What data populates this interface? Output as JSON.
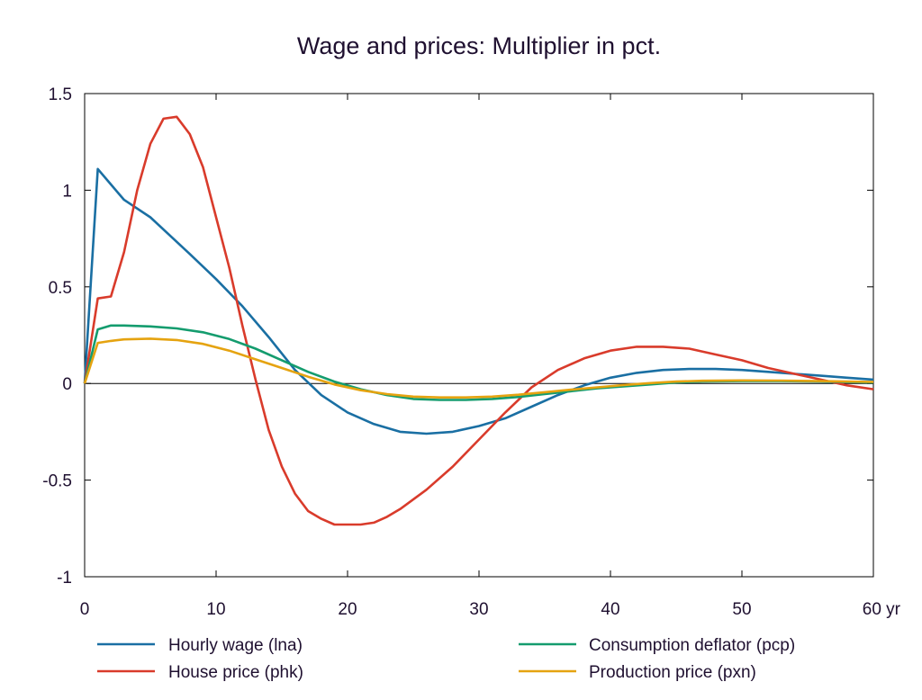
{
  "chart_data": {
    "type": "line",
    "title": "Wage and prices: Multiplier in pct.",
    "x_unit_label": "yr",
    "xlim": [
      0,
      60
    ],
    "ylim": [
      -1,
      1.5
    ],
    "x_ticks": [
      0,
      10,
      20,
      30,
      40,
      50,
      60
    ],
    "x_tick_labels": [
      "0",
      "10",
      "20",
      "30",
      "40",
      "50",
      "60 yr"
    ],
    "y_ticks": [
      1.5,
      1,
      0.5,
      0,
      -0.5,
      -1
    ],
    "y_tick_labels": [
      "1.5",
      "1",
      "0.5",
      "0",
      "-0.5",
      "-1"
    ],
    "zero_line": true,
    "grid": false,
    "legend_position": "bottom",
    "series": [
      {
        "name": "Hourly wage (lna)",
        "color": "#1a6fa3",
        "x": [
          0,
          1,
          2,
          3,
          5,
          8,
          10,
          12,
          14,
          16,
          18,
          20,
          22,
          24,
          26,
          28,
          30,
          32,
          34,
          36,
          38,
          40,
          42,
          44,
          46,
          48,
          50,
          52,
          54,
          56,
          58,
          60
        ],
        "y": [
          0,
          1.11,
          1.03,
          0.95,
          0.86,
          0.67,
          0.54,
          0.4,
          0.24,
          0.07,
          -0.06,
          -0.15,
          -0.21,
          -0.25,
          -0.26,
          -0.25,
          -0.22,
          -0.18,
          -0.12,
          -0.06,
          -0.01,
          0.03,
          0.055,
          0.07,
          0.075,
          0.075,
          0.07,
          0.06,
          0.05,
          0.04,
          0.03,
          0.02
        ]
      },
      {
        "name": "House price (phk)",
        "color": "#d93b2b",
        "x": [
          0,
          1,
          2,
          3,
          4,
          5,
          6,
          7,
          8,
          9,
          10,
          11,
          12,
          13,
          14,
          15,
          16,
          17,
          18,
          19,
          20,
          21,
          22,
          23,
          24,
          26,
          28,
          30,
          32,
          34,
          36,
          38,
          40,
          42,
          44,
          46,
          48,
          50,
          52,
          54,
          56,
          58,
          60
        ],
        "y": [
          0,
          0.44,
          0.45,
          0.68,
          1.0,
          1.24,
          1.37,
          1.38,
          1.29,
          1.12,
          0.86,
          0.6,
          0.3,
          0.02,
          -0.24,
          -0.43,
          -0.57,
          -0.66,
          -0.7,
          -0.73,
          -0.73,
          -0.73,
          -0.72,
          -0.69,
          -0.65,
          -0.55,
          -0.43,
          -0.29,
          -0.15,
          -0.02,
          0.07,
          0.13,
          0.17,
          0.19,
          0.19,
          0.18,
          0.15,
          0.12,
          0.08,
          0.05,
          0.02,
          -0.01,
          -0.03
        ]
      },
      {
        "name": "Consumption deflator (pcp)",
        "color": "#149c6e",
        "x": [
          0,
          1,
          2,
          3,
          5,
          7,
          9,
          11,
          13,
          15,
          17,
          19,
          21,
          23,
          25,
          27,
          29,
          31,
          33,
          35,
          37,
          39,
          41,
          43,
          45,
          47,
          50,
          53,
          56,
          60
        ],
        "y": [
          0,
          0.28,
          0.3,
          0.3,
          0.295,
          0.285,
          0.265,
          0.23,
          0.18,
          0.12,
          0.06,
          0.01,
          -0.03,
          -0.06,
          -0.08,
          -0.085,
          -0.085,
          -0.08,
          -0.07,
          -0.055,
          -0.04,
          -0.025,
          -0.015,
          -0.005,
          0.005,
          0.01,
          0.012,
          0.012,
          0.01,
          0.005
        ]
      },
      {
        "name": "Production price (pxn)",
        "color": "#e5a310",
        "x": [
          0,
          1,
          2,
          3,
          5,
          7,
          9,
          11,
          13,
          15,
          17,
          19,
          21,
          23,
          25,
          27,
          29,
          31,
          33,
          35,
          37,
          39,
          41,
          43,
          45,
          47,
          50,
          53,
          56,
          60
        ],
        "y": [
          0,
          0.21,
          0.22,
          0.228,
          0.232,
          0.225,
          0.205,
          0.17,
          0.125,
          0.08,
          0.035,
          -0.005,
          -0.035,
          -0.055,
          -0.068,
          -0.072,
          -0.072,
          -0.068,
          -0.058,
          -0.045,
          -0.032,
          -0.02,
          -0.008,
          0.002,
          0.01,
          0.014,
          0.016,
          0.015,
          0.012,
          0.008
        ]
      }
    ]
  }
}
